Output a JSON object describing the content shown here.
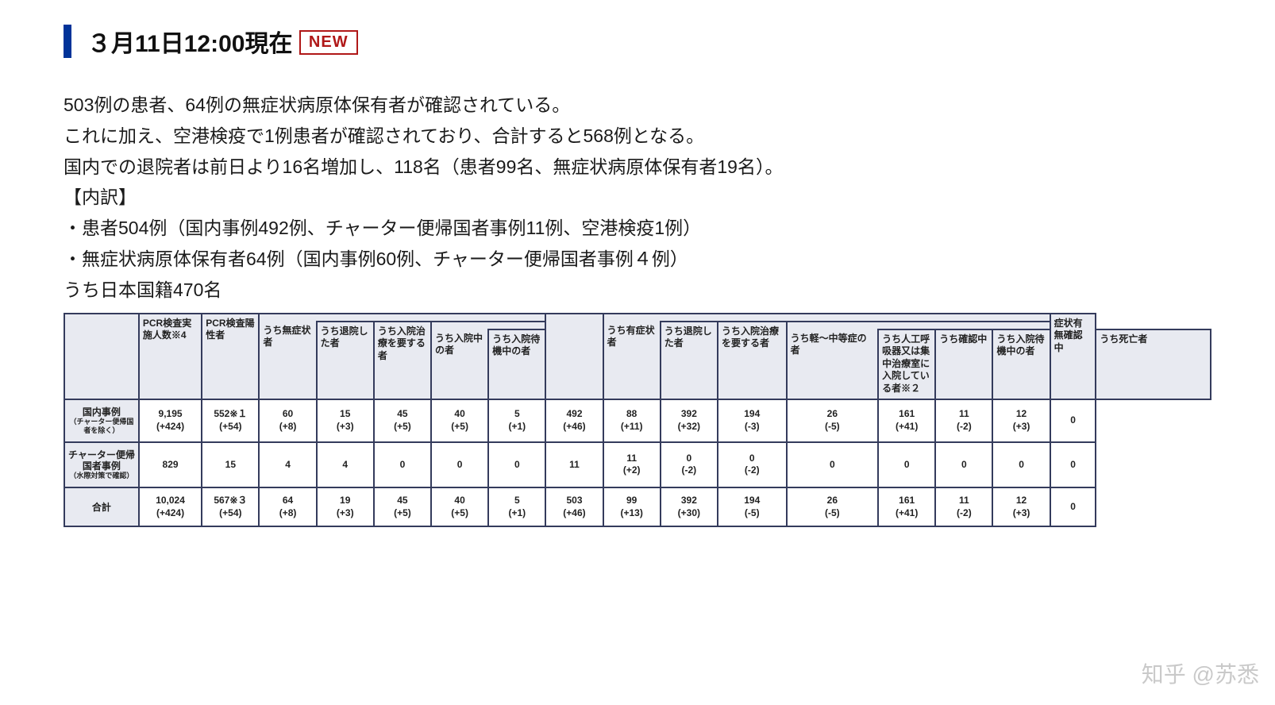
{
  "heading": {
    "title": "３月11日12:00現在",
    "badge": "NEW"
  },
  "paragraphs": [
    "503例の患者、64例の無症状病原体保有者が確認されている。",
    "これに加え、空港検疫で1例患者が確認されており、合計すると568例となる。",
    "国内での退院者は前日より16名増加し、118名（患者99名、無症状病原体保有者19名）。",
    "【内訳】",
    "・患者504例（国内事例492例、チャーター便帰国者事例11例、空港検疫1例）",
    "・無症状病原体保有者64例（国内事例60例、チャーター便帰国者事例４例）",
    "うち日本国籍470名"
  ],
  "table": {
    "headers": {
      "blank": "",
      "pcr_count": "PCR検査実施人数※4",
      "pcr_positive": "PCR検査陽性者",
      "asym": "うち無症状者",
      "asym_discharged": "うち退院した者",
      "asym_need": "うち入院治療を要する者",
      "asym_in": "うち入院中の者",
      "asym_wait": "うち入院待機中の者",
      "sym_blank": "",
      "sym": "うち有症状者",
      "sym_discharged": "うち退院した者",
      "sym_need": "うち入院治療を要する者",
      "sym_mild": "うち軽～中等症の者",
      "sym_icu": "うち人工呼吸器又は集中治療室に入院している者※２",
      "sym_confirm": "うち確認中",
      "sym_wait": "うち入院待機中の者",
      "sym_death": "うち死亡者",
      "unknown": "症状有無確認中"
    },
    "rows": [
      {
        "label": "国内事例",
        "sublabel": "（チャーター便帰国者を除く）",
        "cells": [
          {
            "v": "9,195",
            "c": "(+424)",
            "red": true
          },
          {
            "v": "552※１",
            "c": "(+54)",
            "red": true
          },
          {
            "v": "60",
            "c": "(+8)",
            "red": true
          },
          {
            "v": "15",
            "c": "(+3)",
            "red": true
          },
          {
            "v": "45",
            "c": "(+5)",
            "red": true
          },
          {
            "v": "40",
            "c": "(+5)",
            "red": true
          },
          {
            "v": "5",
            "c": "(+1)",
            "red": true
          },
          {
            "v": "492",
            "c": "(+46)",
            "red": true
          },
          {
            "v": "88",
            "c": "(+11)",
            "red": true
          },
          {
            "v": "392",
            "c": "(+32)",
            "red": true
          },
          {
            "v": "194",
            "c": "(-3)",
            "red": true
          },
          {
            "v": "26",
            "c": "(-5)",
            "red": true
          },
          {
            "v": "161",
            "c": "(+41)",
            "red": true
          },
          {
            "v": "11",
            "c": "(-2)",
            "red": true
          },
          {
            "v": "12",
            "c": "(+3)",
            "red": true
          },
          {
            "v": "0",
            "c": "",
            "red": false
          }
        ]
      },
      {
        "label": "チャーター便帰国者事例",
        "sublabel": "（水際対策で確認）",
        "cells": [
          {
            "v": "829",
            "c": "",
            "red": false
          },
          {
            "v": "15",
            "c": "",
            "red": false
          },
          {
            "v": "4",
            "c": "",
            "red": false
          },
          {
            "v": "4",
            "c": "",
            "red": false
          },
          {
            "v": "0",
            "c": "",
            "red": false
          },
          {
            "v": "0",
            "c": "",
            "red": false
          },
          {
            "v": "0",
            "c": "",
            "red": false
          },
          {
            "v": "11",
            "c": "",
            "red": false
          },
          {
            "v": "11",
            "c": "(+2)",
            "red": true
          },
          {
            "v": "0",
            "c": "(-2)",
            "red": true
          },
          {
            "v": "0",
            "c": "(-2)",
            "red": true
          },
          {
            "v": "0",
            "c": "",
            "red": false
          },
          {
            "v": "0",
            "c": "",
            "red": false
          },
          {
            "v": "0",
            "c": "",
            "red": false
          },
          {
            "v": "0",
            "c": "",
            "red": false
          },
          {
            "v": "0",
            "c": "",
            "red": false
          }
        ]
      },
      {
        "label": "合計",
        "sublabel": "",
        "total": true,
        "cells": [
          {
            "v": "10,024",
            "c": "(+424)",
            "red": true
          },
          {
            "v": "567※３",
            "c": "(+54)",
            "red": true,
            "bold": true
          },
          {
            "v": "64",
            "c": "(+8)",
            "red": true
          },
          {
            "v": "19",
            "c": "(+3)",
            "red": true
          },
          {
            "v": "45",
            "c": "(+5)",
            "red": true
          },
          {
            "v": "40",
            "c": "(+5)",
            "red": true
          },
          {
            "v": "5",
            "c": "(+1)",
            "red": true
          },
          {
            "v": "503",
            "c": "(+46)",
            "red": true
          },
          {
            "v": "99",
            "c": "(+13)",
            "red": true
          },
          {
            "v": "392",
            "c": "(+30)",
            "red": true
          },
          {
            "v": "194",
            "c": "(-5)",
            "red": true
          },
          {
            "v": "26",
            "c": "(-5)",
            "red": true
          },
          {
            "v": "161",
            "c": "(+41)",
            "red": true
          },
          {
            "v": "11",
            "c": "(-2)",
            "red": true
          },
          {
            "v": "12",
            "c": "(+3)",
            "red": true
          },
          {
            "v": "0",
            "c": "",
            "red": false
          }
        ]
      }
    ]
  },
  "watermark": "知乎 @苏悉",
  "colors": {
    "accent_blue": "#003399",
    "badge_red": "#b01818",
    "value_red": "#c02418",
    "table_border": "#343b5c",
    "table_header_bg": "#e8eaf1"
  }
}
